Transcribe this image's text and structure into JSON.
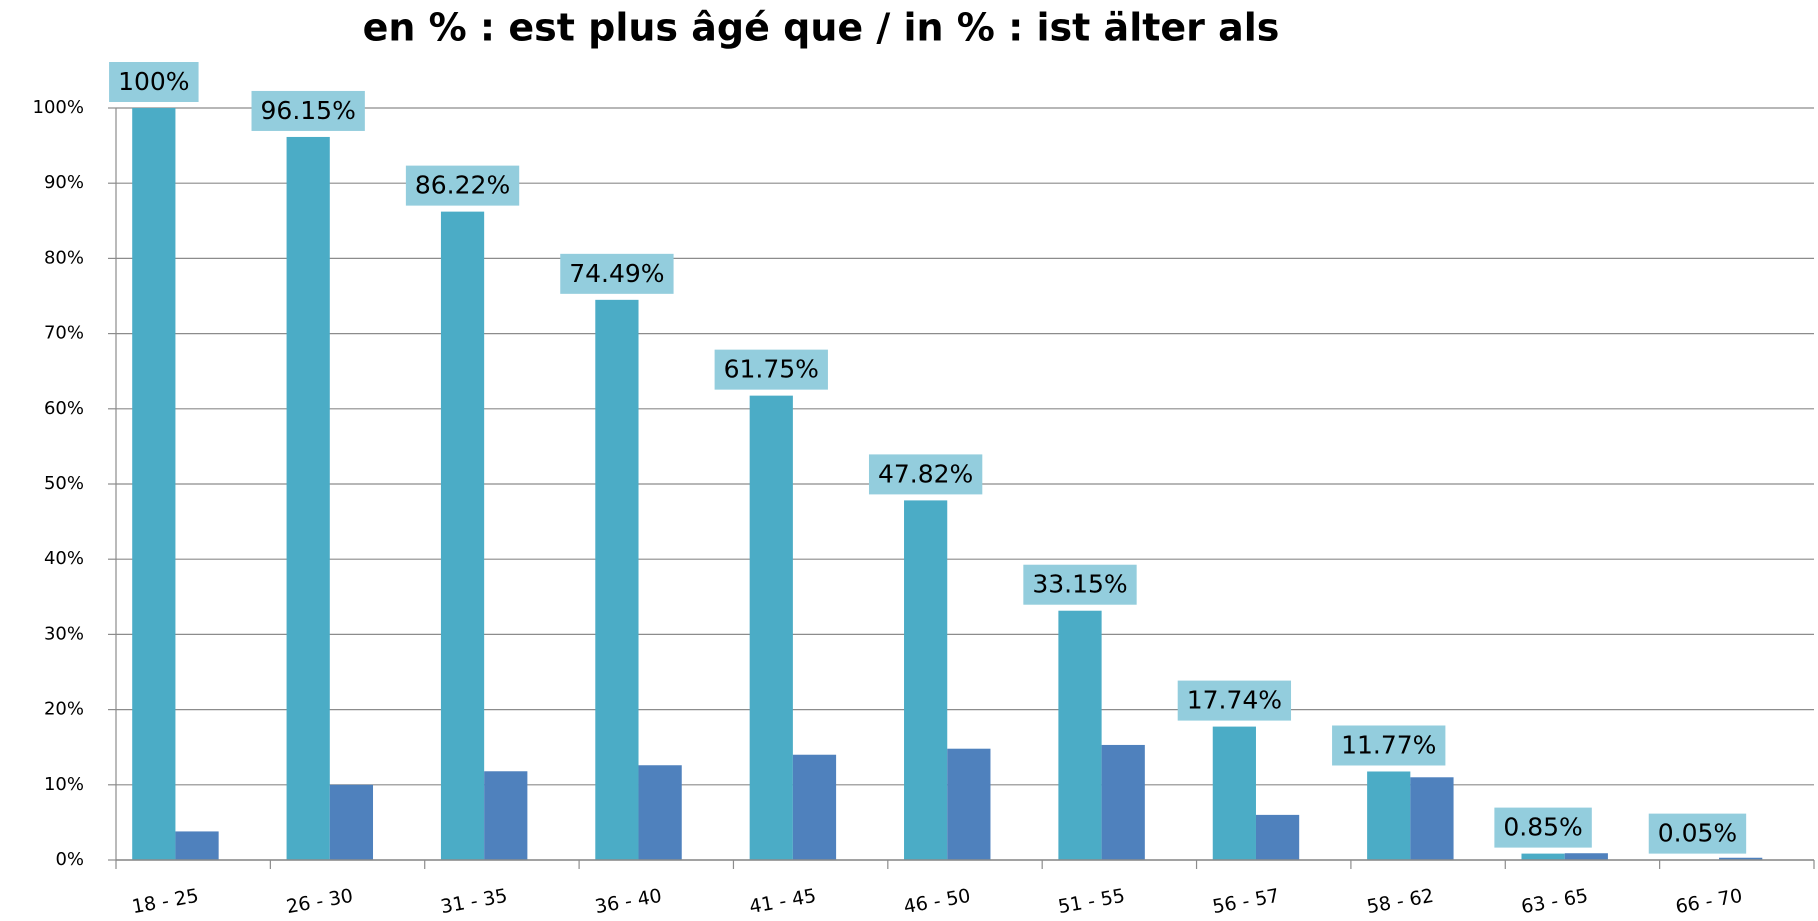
{
  "chart_data": {
    "type": "bar",
    "title": "en % : est plus âgé que   /   in % : ist älter als",
    "categories": [
      "18 - 25",
      "26 - 30",
      "31 - 35",
      "36 - 40",
      "41 - 45",
      "46 - 50",
      "51 - 55",
      "56 - 57",
      "58 - 62",
      "63 - 65",
      "66 - 70"
    ],
    "series": [
      {
        "color": "#4bacc6",
        "values": [
          100,
          96.15,
          86.22,
          74.49,
          61.75,
          47.82,
          33.15,
          17.74,
          11.77,
          0.85,
          0.05
        ],
        "value_labels": [
          "100%",
          "96.15%",
          "86.22%",
          "74.49%",
          "61.75%",
          "47.82%",
          "33.15%",
          "17.74%",
          "11.77%",
          "0.85%",
          "0.05%"
        ]
      },
      {
        "color": "#4f81bd",
        "values": [
          3.8,
          10,
          11.8,
          12.6,
          14,
          14.8,
          15.3,
          6,
          11,
          0.9,
          0.3
        ]
      }
    ],
    "ylim": [
      0,
      100
    ],
    "yticks": [
      {
        "value": 0,
        "label": "0%"
      },
      {
        "value": 10,
        "label": "10%"
      },
      {
        "value": 20,
        "label": "20%"
      },
      {
        "value": 30,
        "label": "30%"
      },
      {
        "value": 40,
        "label": "40%"
      },
      {
        "value": 50,
        "label": "50%"
      },
      {
        "value": 60,
        "label": "60%"
      },
      {
        "value": 70,
        "label": "70%"
      },
      {
        "value": 80,
        "label": "80%"
      },
      {
        "value": 90,
        "label": "90%"
      },
      {
        "value": 100,
        "label": "100%"
      }
    ],
    "grid": true
  }
}
